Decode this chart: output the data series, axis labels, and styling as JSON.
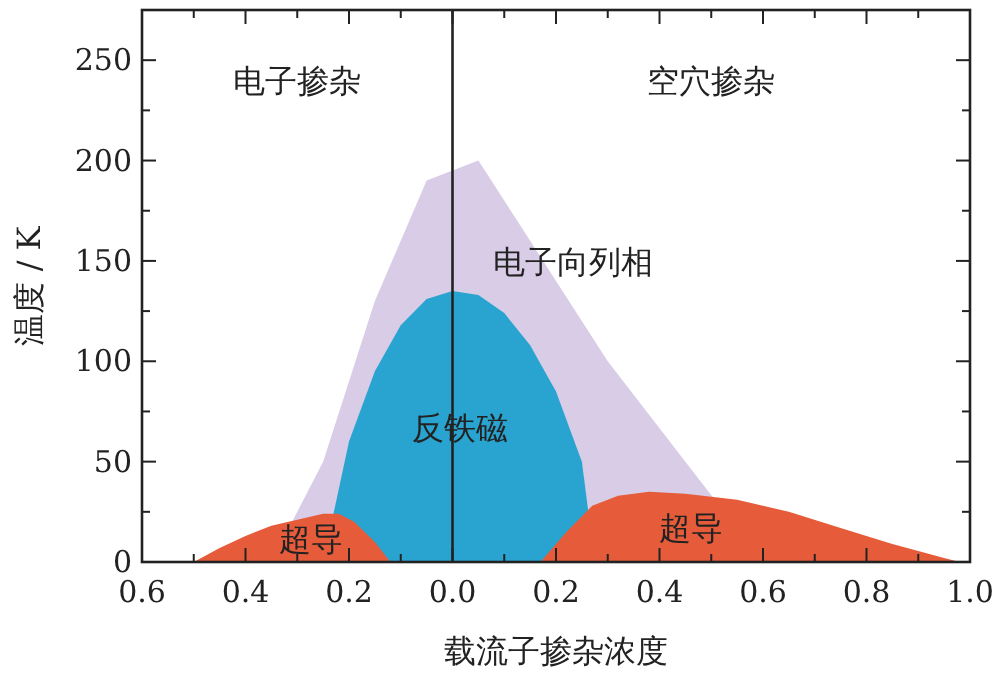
{
  "chart_data": {
    "type": "area",
    "xlabel": "载流子掺杂浓度",
    "ylabel": "温度 / K",
    "xlim": [
      -0.6,
      1.0
    ],
    "ylim": [
      0,
      275
    ],
    "xticks": [
      {
        "value": -0.6,
        "label": "0.6"
      },
      {
        "value": -0.5,
        "label": null
      },
      {
        "value": -0.4,
        "label": "0.4"
      },
      {
        "value": -0.3,
        "label": null
      },
      {
        "value": -0.2,
        "label": "0.2"
      },
      {
        "value": -0.1,
        "label": null
      },
      {
        "value": 0,
        "label": "0.0"
      },
      {
        "value": 0.1,
        "label": null
      },
      {
        "value": 0.2,
        "label": "0.2"
      },
      {
        "value": 0.3,
        "label": null
      },
      {
        "value": 0.4,
        "label": "0.4"
      },
      {
        "value": 0.5,
        "label": null
      },
      {
        "value": 0.6,
        "label": "0.6"
      },
      {
        "value": 0.7,
        "label": null
      },
      {
        "value": 0.8,
        "label": "0.8"
      },
      {
        "value": 0.9,
        "label": null
      },
      {
        "value": 1.0,
        "label": "1.0"
      }
    ],
    "yticks": [
      0,
      {
        "value": 25,
        "label": null
      },
      50,
      {
        "value": 75,
        "label": null
      },
      100,
      {
        "value": 125,
        "label": null
      },
      150,
      {
        "value": 175,
        "label": null
      },
      200,
      {
        "value": 225,
        "label": null
      },
      250
    ],
    "grid": false,
    "series": [
      {
        "name": "电子向列相",
        "color": "#d8cce6",
        "x": [
          -0.35,
          -0.25,
          -0.15,
          -0.05,
          0.05,
          0.15,
          0.3,
          0.45,
          0.6
        ],
        "values": [
          0,
          50,
          130,
          190,
          200,
          160,
          100,
          50,
          0
        ]
      },
      {
        "name": "反铁磁",
        "color": "#29a4d0",
        "x": [
          -0.235,
          -0.23,
          -0.2,
          -0.15,
          -0.1,
          -0.05,
          0,
          0.05,
          0.1,
          0.15,
          0.2,
          0.25,
          0.275
        ],
        "values": [
          0,
          24,
          60,
          95,
          118,
          131,
          135,
          133,
          124,
          108,
          85,
          50,
          0
        ]
      },
      {
        "name": "超导",
        "color": "#e65c3b",
        "x": [
          -0.5,
          -0.45,
          -0.4,
          -0.35,
          -0.3,
          -0.25,
          -0.22,
          -0.19,
          -0.15,
          -0.12
        ],
        "values": [
          0,
          7,
          13,
          18,
          21,
          24,
          24,
          20,
          10,
          0
        ]
      },
      {
        "name": "超导",
        "color": "#e65c3b",
        "x": [
          0.17,
          0.22,
          0.27,
          0.32,
          0.38,
          0.45,
          0.55,
          0.65,
          0.75,
          0.85,
          0.95,
          0.98
        ],
        "values": [
          0,
          15,
          28,
          33,
          35,
          34,
          31,
          25,
          17,
          9,
          2,
          0
        ]
      }
    ],
    "ref_lines": [
      {
        "axis": "x",
        "value": 0,
        "color": "#222222"
      }
    ],
    "annotations": [
      "电子掺杂",
      "空穴掺杂"
    ]
  }
}
